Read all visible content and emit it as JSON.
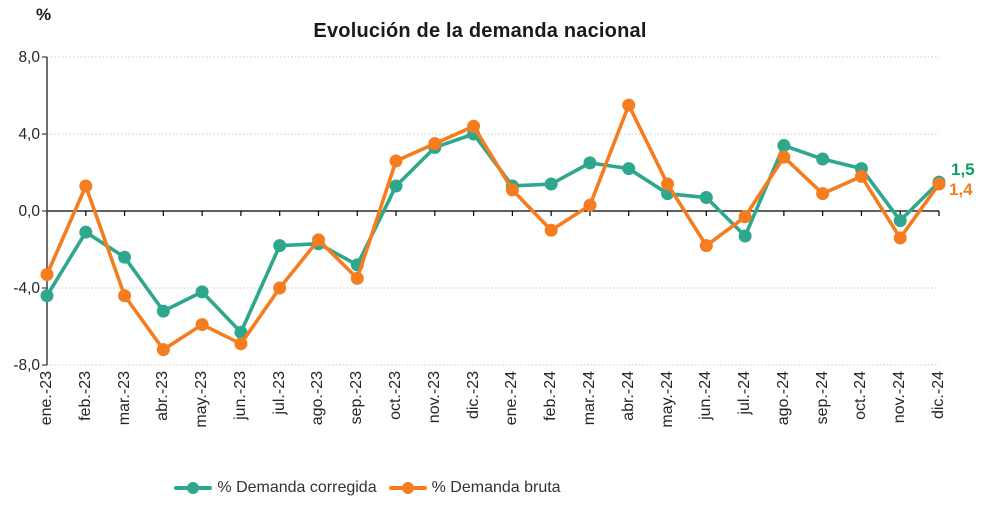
{
  "unit_label": "%",
  "end_labels": {
    "corregida": "1,5",
    "bruta": "1,4"
  },
  "colors": {
    "corregida": "#2EA78C",
    "bruta": "#F57D1F",
    "corregida_end_label": "#0BA163",
    "bruta_end_label": "#F57D1F",
    "gridline": "#C9C9C9",
    "zero_axis": "#000000",
    "axis_line": "#404040",
    "tick_text": "#262626",
    "legend_text": "#333333"
  },
  "chart_data": {
    "type": "line",
    "title": "Evolución de la demanda nacional",
    "ylabel": "%",
    "xlabel": "",
    "ylim": [
      -8,
      8
    ],
    "grid": true,
    "legend_position": "bottom",
    "y_ticks": [
      {
        "label": "8,0",
        "value": 8
      },
      {
        "label": "4,0",
        "value": 4
      },
      {
        "label": "0,0",
        "value": 0
      },
      {
        "label": "-4,0",
        "value": -4
      },
      {
        "label": "-8,0",
        "value": -8
      }
    ],
    "categories": [
      "ene.-23",
      "feb.-23",
      "mar.-23",
      "abr.-23",
      "may.-23",
      "jun.-23",
      "jul.-23",
      "ago.-23",
      "sep.-23",
      "oct.-23",
      "nov.-23",
      "dic.-23",
      "ene.-24",
      "feb.-24",
      "mar.-24",
      "abr.-24",
      "may.-24",
      "jun.-24",
      "jul.-24",
      "ago.-24",
      "sep.-24",
      "oct.-24",
      "nov.-24",
      "dic.-24"
    ],
    "series": [
      {
        "name": "% Demanda corregida",
        "color": "#2EA78C",
        "values": [
          -4.4,
          -1.1,
          -2.4,
          -5.2,
          -4.2,
          -6.3,
          -1.8,
          -1.7,
          -2.8,
          1.3,
          3.3,
          4.0,
          1.3,
          1.4,
          2.5,
          2.2,
          0.9,
          0.7,
          -1.3,
          3.4,
          2.7,
          2.2,
          -0.5,
          1.5
        ]
      },
      {
        "name": "% Demanda bruta",
        "color": "#F57D1F",
        "values": [
          -3.3,
          1.3,
          -4.4,
          -7.2,
          -5.9,
          -6.9,
          -4.0,
          -1.5,
          -3.5,
          2.6,
          3.5,
          4.4,
          1.1,
          -1.0,
          0.3,
          5.5,
          1.4,
          -1.8,
          -0.3,
          2.8,
          0.9,
          1.8,
          -1.4,
          1.4
        ]
      }
    ]
  }
}
